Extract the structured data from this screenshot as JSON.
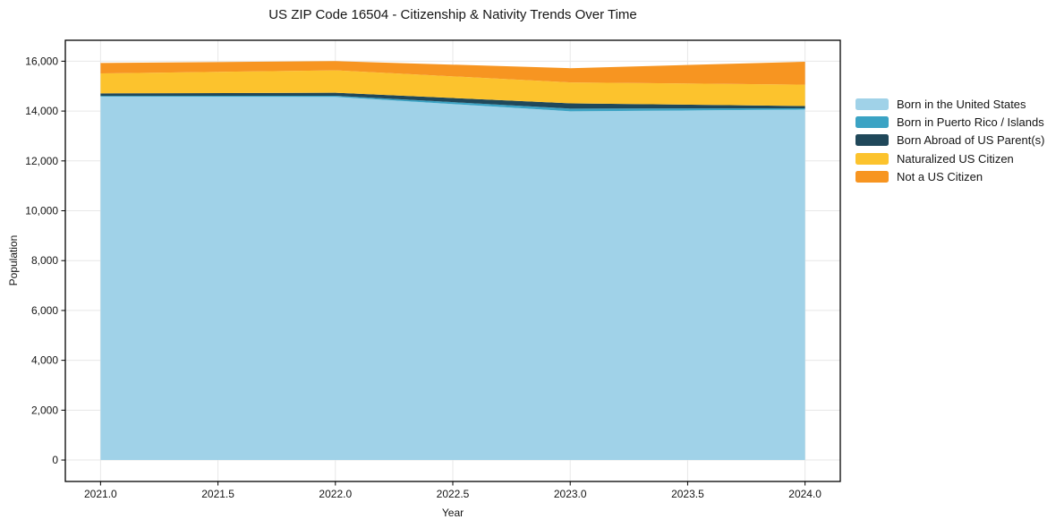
{
  "chart_data": {
    "type": "area",
    "stacked": true,
    "title": "US ZIP Code 16504 - Citizenship & Nativity Trends Over Time",
    "xlabel": "Year",
    "ylabel": "Population",
    "x": [
      2021,
      2022,
      2023,
      2024
    ],
    "series": [
      {
        "name": "Born in the United States",
        "color": "#a0d2e8",
        "values": [
          14580,
          14570,
          13990,
          14060
        ]
      },
      {
        "name": "Born in Puerto Rico / Islands",
        "color": "#3ba3c4",
        "values": [
          30,
          45,
          110,
          50
        ]
      },
      {
        "name": "Born Abroad of US Parent(s)",
        "color": "#20485a",
        "values": [
          100,
          120,
          210,
          90
        ]
      },
      {
        "name": "Naturalized US Citizen",
        "color": "#fcc32d",
        "values": [
          800,
          900,
          840,
          860
        ]
      },
      {
        "name": "Not a US Citizen",
        "color": "#f79521",
        "values": [
          420,
          370,
          570,
          920
        ]
      }
    ],
    "totals": [
      15930,
      16005,
      15720,
      15980
    ],
    "xlim": [
      2020.85,
      2024.15
    ],
    "ylim": [
      -860,
      16840
    ],
    "xticks": [
      2021.0,
      2021.5,
      2022.0,
      2022.5,
      2023.0,
      2023.5,
      2024.0
    ],
    "xtick_labels": [
      "2021.0",
      "2021.5",
      "2022.0",
      "2022.5",
      "2023.0",
      "2023.5",
      "2024.0"
    ],
    "yticks": [
      0,
      2000,
      4000,
      6000,
      8000,
      10000,
      12000,
      14000,
      16000
    ],
    "ytick_labels": [
      "0",
      "2,000",
      "4,000",
      "6,000",
      "8,000",
      "10,000",
      "12,000",
      "14,000",
      "16,000"
    ],
    "grid": true,
    "grid_color": "#e7e7e7",
    "spine_color": "#000000",
    "text_color": "#151515",
    "legend_position": "right"
  }
}
